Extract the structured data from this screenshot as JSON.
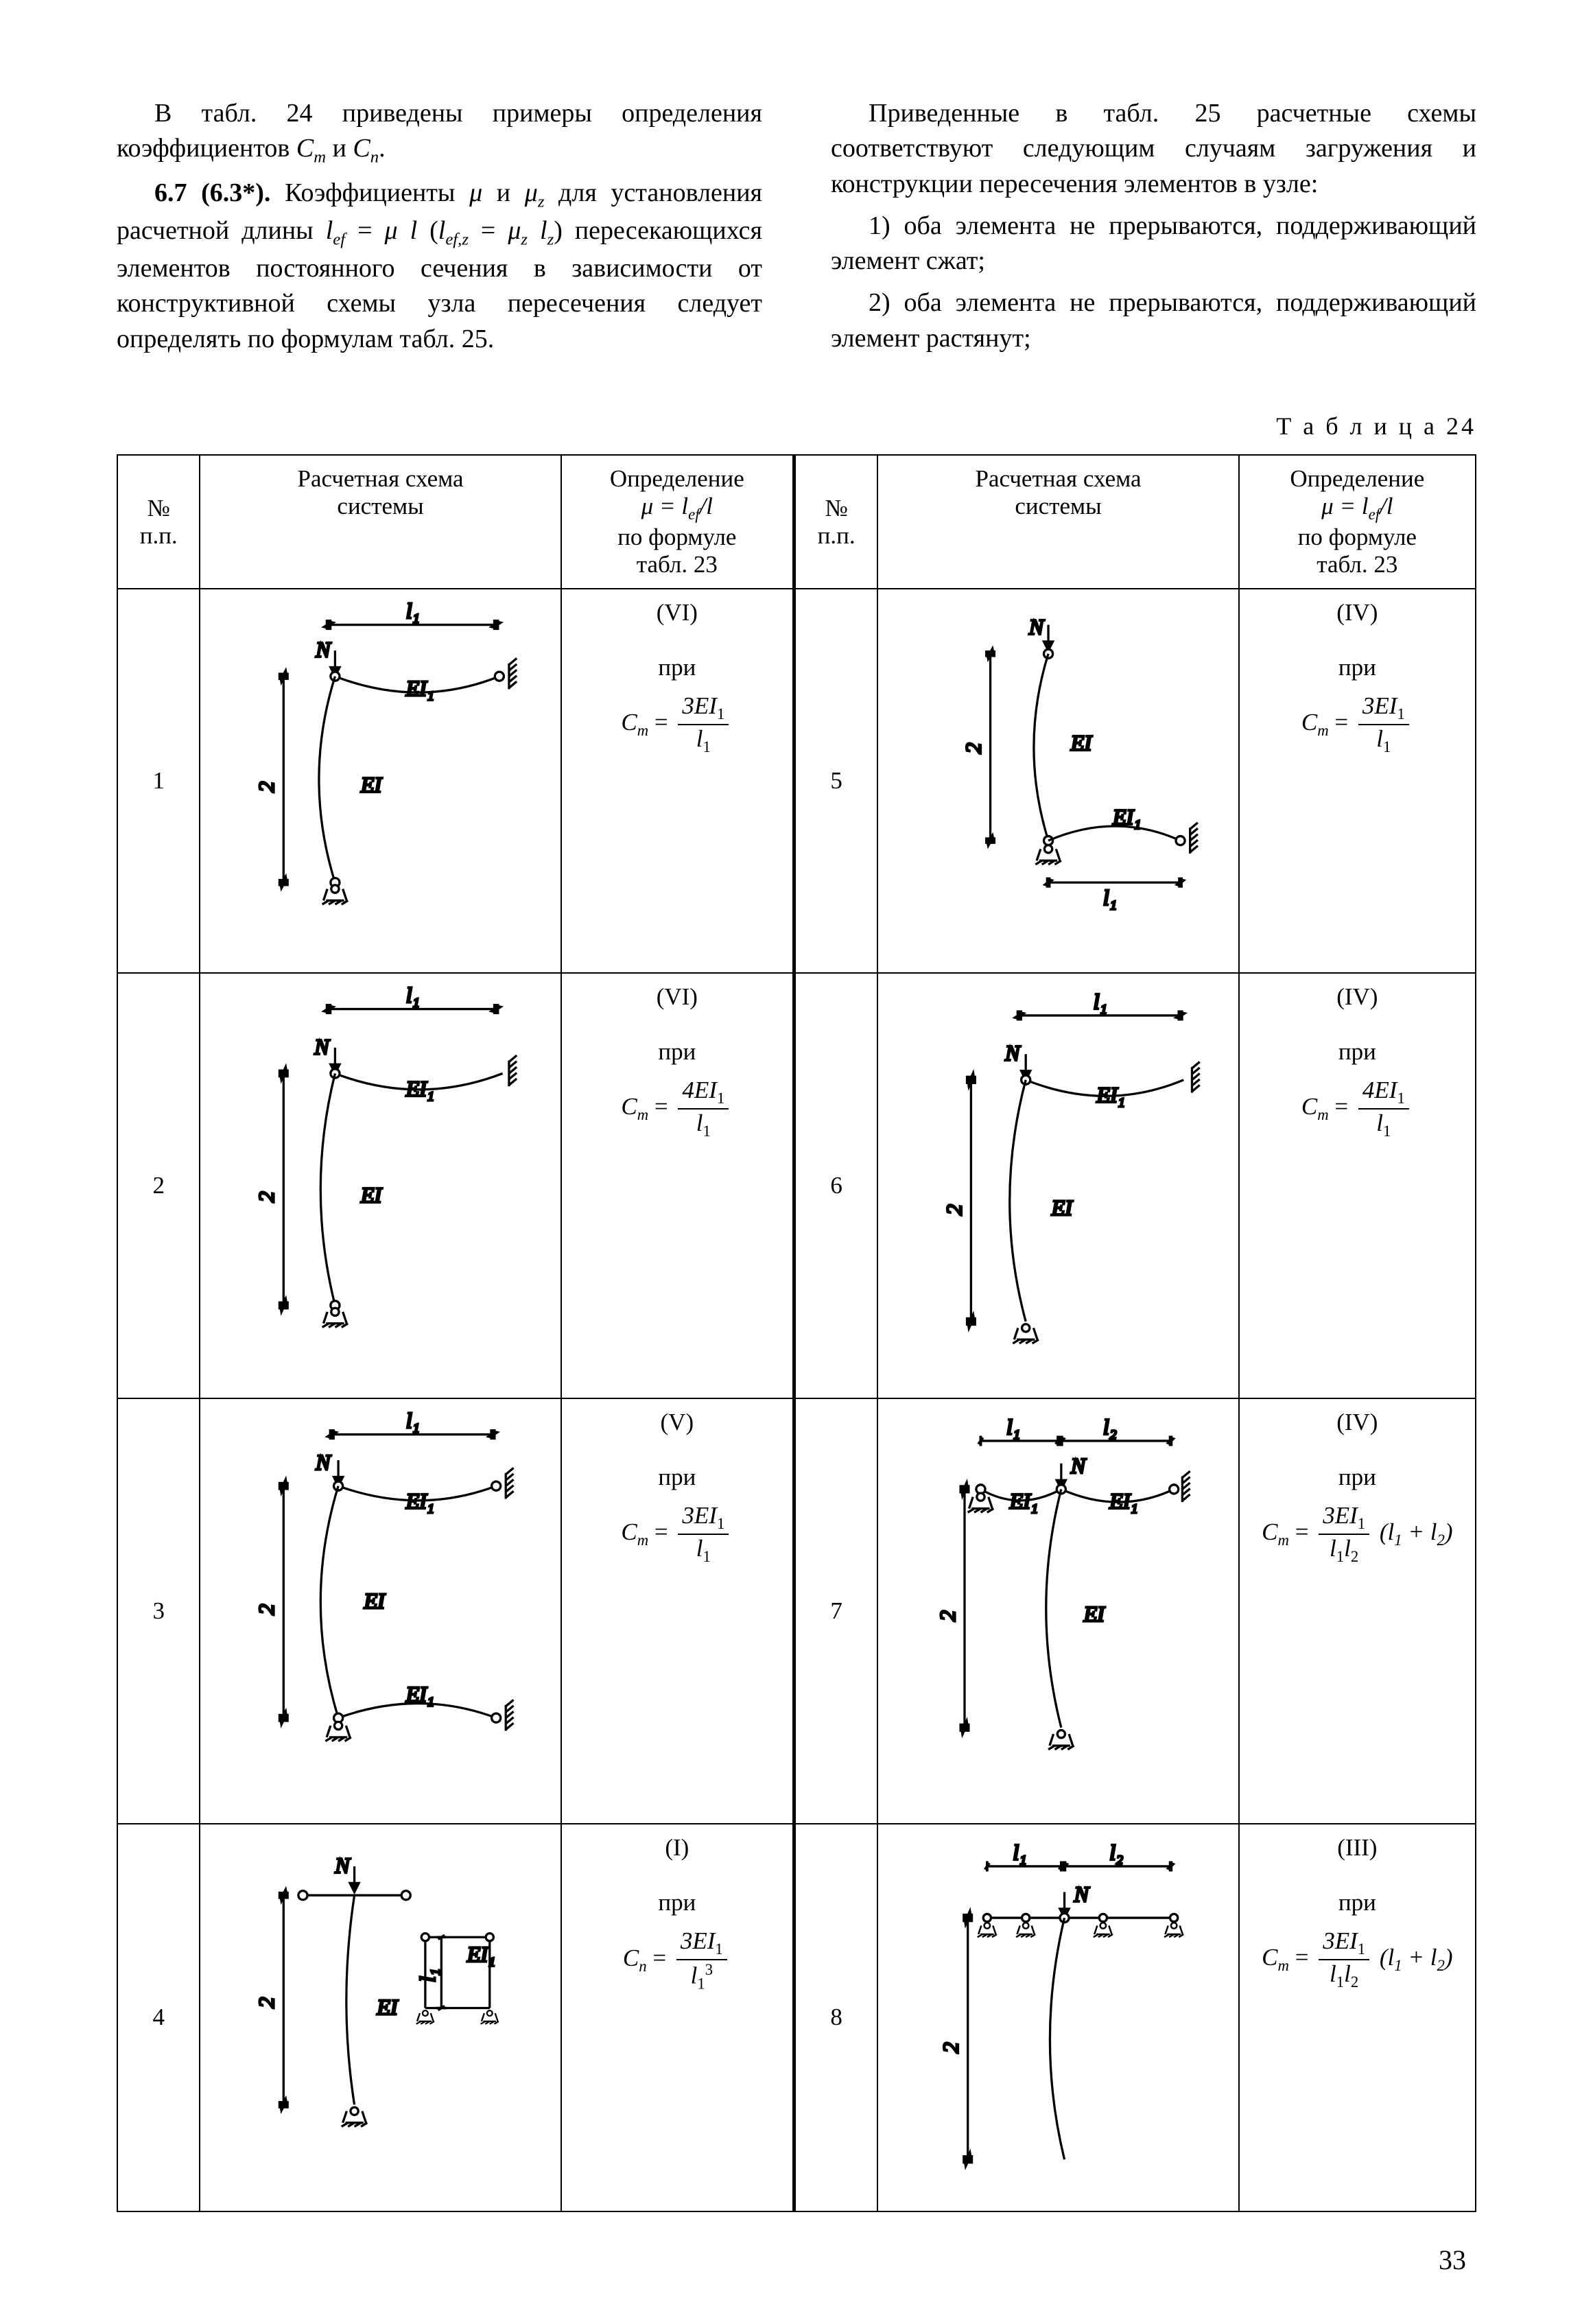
{
  "text": {
    "p_left_1_a": "В табл. 24 приведены примеры определения коэффициентов ",
    "p_left_1_b": " и ",
    "p_left_2_a": "6.7 (6.3*). ",
    "p_left_2_b": "Коэффициенты ",
    "p_left_2_c": " и ",
    "p_left_2_d": " для установления расчетной длины ",
    "p_left_2_e": " (",
    "p_left_2_f": ") пересекающихся элементов постоянного сечения в зависимости от конструктивной схемы узла пересечения следует определять по формулам табл. 25.",
    "p_right_1": "Приведенные в табл. 25 расчетные схемы соответствуют следующим случаям загружения и конструкции пересечения элементов в узле:",
    "p_right_2": "1) оба элемента не прерываются, поддерживающий элемент сжат;",
    "p_right_3": "2) оба элемента не прерываются, поддерживающий элемент растянут;",
    "table_caption": "Т а б л и ц а 24",
    "page_number": "33"
  },
  "symbols": {
    "Cm": "C",
    "Cm_sub": "m",
    "Cn": "C",
    "Cn_sub": "n",
    "mu": "μ",
    "muz": "μ",
    "muz_sub": "z",
    "lef": "l",
    "lef_sub": "ef",
    "lefz": "l",
    "lefz_sub": "ef,z",
    "lz": "l",
    "lz_sub": "z",
    "l": "l",
    "l1": "l",
    "l1_sub": "1",
    "l2": "l",
    "l2_sub": "2",
    "EI1_num": "3EI",
    "EI1_num4": "4EI",
    "EI1_sub": "1",
    "l13_d": "l",
    "l13_sub": "1",
    "l13_sup": "3",
    "l1l2_d1": "l",
    "l1l2_d2": "l"
  },
  "headers": {
    "num": "№\nп.п.",
    "scheme": "Расчетная схема\nсистемы",
    "formula_line1": "Определение",
    "formula_line2a": "μ = l",
    "formula_line2b": "/l",
    "formula_line3": "по формуле",
    "formula_line4": "табл. 23"
  },
  "rows": [
    {
      "n": "1",
      "roman": "(VI)",
      "C": "m",
      "num": "3EI",
      "numsub": "1",
      "den": "l",
      "densub": "1",
      "extra": ""
    },
    {
      "n": "2",
      "roman": "(VI)",
      "C": "m",
      "num": "4EI",
      "numsub": "1",
      "den": "l",
      "densub": "1",
      "extra": ""
    },
    {
      "n": "3",
      "roman": "(V)",
      "C": "m",
      "num": "3EI",
      "numsub": "1",
      "den": "l",
      "densub": "1",
      "extra": ""
    },
    {
      "n": "4",
      "roman": "(I)",
      "C": "n",
      "num": "3EI",
      "numsub": "1",
      "den": "l",
      "densub": "1",
      "densup": "3",
      "extra": ""
    },
    {
      "n": "5",
      "roman": "(IV)",
      "C": "m",
      "num": "3EI",
      "numsub": "1",
      "den": "l",
      "densub": "1",
      "extra": ""
    },
    {
      "n": "6",
      "roman": "(IV)",
      "C": "m",
      "num": "4EI",
      "numsub": "1",
      "den": "l",
      "densub": "1",
      "extra": ""
    },
    {
      "n": "7",
      "roman": "(IV)",
      "C": "m",
      "num": "3EI",
      "numsub": "1",
      "den": "l₁l₂",
      "densub": "",
      "extra": " (l₁ + l₂)",
      "frac_num": "3EI",
      "frac_num_sub": "1",
      "frac_den_l1": "l",
      "frac_den_l1s": "1",
      "frac_den_l2": "l",
      "frac_den_l2s": "2"
    },
    {
      "n": "8",
      "roman": "(III)",
      "C": "m",
      "num": "3EI",
      "numsub": "1",
      "den": "l₁ l₂",
      "densub": "",
      "extra": " (l₁ + l₂)",
      "frac_num": "3EI",
      "frac_num_sub": "1",
      "frac_den_l1": "l",
      "frac_den_l1s": "1",
      "frac_den_l2": "l",
      "frac_den_l2s": "2"
    }
  ],
  "diagram_labels": {
    "N": "N",
    "EI": "EI",
    "EI1": "EI₁",
    "l": "l",
    "l1": "l₁",
    "l2": "l₂",
    "two": "2"
  },
  "diagram_style": {
    "stroke": "#000000",
    "stroke_width": 3.5,
    "font_family": "Times New Roman, serif",
    "font_size": 34,
    "font_style": "italic"
  }
}
